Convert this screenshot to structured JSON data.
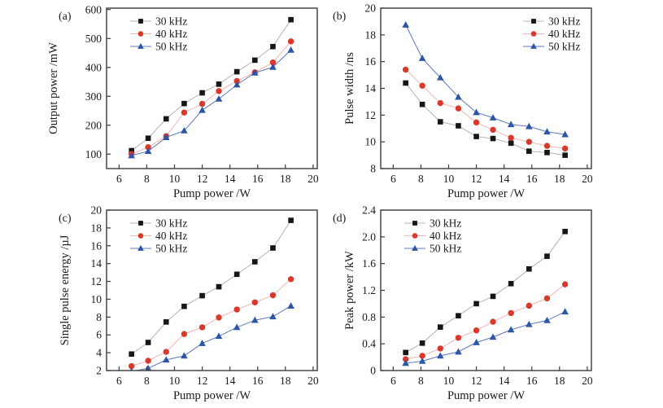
{
  "figure": {
    "xlabel": "Pump power /W",
    "series_labels": [
      "30 kHz",
      "40 kHz",
      "50 kHz"
    ],
    "colors": {
      "series_30kHz_marker": "#161616",
      "series_30kHz_line": "#b3b3b3",
      "series_40kHz_marker": "#d9382c",
      "series_40kHz_line": "#f4b6b0",
      "series_50kHz_marker": "#2d55a5",
      "series_50kHz_line": "#5c79bd",
      "frame": "#3a3a3a",
      "text": "#1a1a1a",
      "background": "#ffffff"
    }
  },
  "chart_data": [
    {
      "id": "a",
      "type": "line",
      "panel_label": "(a)",
      "xlabel": "Pump power /W",
      "ylabel": "Output power /mW",
      "xlim": [
        5.1,
        20.3
      ],
      "ylim": [
        50,
        605
      ],
      "xticks": [
        6,
        8,
        10,
        12,
        14,
        16,
        18,
        20
      ],
      "xtick_labels": [
        "6",
        "8",
        "10",
        "12",
        "14",
        "16",
        "18",
        "20"
      ],
      "yticks": [
        100,
        200,
        300,
        400,
        500,
        600
      ],
      "ytick_labels": [
        "100",
        "200",
        "300",
        "400",
        "500",
        "600"
      ],
      "grid": false,
      "legend_pos": "top-left",
      "x": [
        6.9,
        8.1,
        9.4,
        10.7,
        12.0,
        13.2,
        14.5,
        15.8,
        17.1,
        18.4
      ],
      "series": [
        {
          "name": "30 kHz",
          "marker": "square",
          "color": "#161616",
          "line_color": "#b3b3b3",
          "values": [
            112,
            155,
            222,
            275,
            312,
            342,
            385,
            425,
            472,
            565
          ]
        },
        {
          "name": "40 kHz",
          "marker": "circle",
          "color": "#d9382c",
          "line_color": "#f4b6b0",
          "values": [
            100,
            124,
            162,
            244,
            274,
            318,
            353,
            383,
            417,
            490
          ]
        },
        {
          "name": "50 kHz",
          "marker": "triangle",
          "color": "#2d55a5",
          "line_color": "#5c79bd",
          "values": [
            95,
            110,
            158,
            181,
            252,
            291,
            340,
            381,
            401,
            460
          ]
        }
      ]
    },
    {
      "id": "b",
      "type": "line",
      "panel_label": "(b)",
      "xlabel": "Pump power /W",
      "ylabel": "Pulse width /ns",
      "xlim": [
        5.1,
        20.3
      ],
      "ylim": [
        8,
        20
      ],
      "xticks": [
        6,
        8,
        10,
        12,
        14,
        16,
        18,
        20
      ],
      "xtick_labels": [
        "6",
        "8",
        "10",
        "12",
        "14",
        "16",
        "18",
        "20"
      ],
      "yticks": [
        8,
        10,
        12,
        14,
        16,
        18,
        20
      ],
      "ytick_labels": [
        "8",
        "10",
        "12",
        "14",
        "16",
        "18",
        "20"
      ],
      "grid": false,
      "legend_pos": "top-right",
      "x": [
        6.9,
        8.1,
        9.4,
        10.7,
        12.0,
        13.2,
        14.5,
        15.8,
        17.1,
        18.4
      ],
      "series": [
        {
          "name": "30 kHz",
          "marker": "square",
          "color": "#161616",
          "line_color": "#b3b3b3",
          "values": [
            14.4,
            12.8,
            11.5,
            11.2,
            10.4,
            10.25,
            9.9,
            9.3,
            9.2,
            9.0
          ]
        },
        {
          "name": "40 kHz",
          "marker": "circle",
          "color": "#d9382c",
          "line_color": "#f4b6b0",
          "values": [
            15.4,
            14.2,
            12.9,
            12.5,
            11.45,
            10.9,
            10.3,
            10.0,
            9.7,
            9.5
          ]
        },
        {
          "name": "50 kHz",
          "marker": "triangle",
          "color": "#2d55a5",
          "line_color": "#5c79bd",
          "values": [
            18.75,
            16.25,
            14.8,
            13.35,
            12.2,
            11.8,
            11.3,
            11.15,
            10.75,
            10.55
          ]
        }
      ]
    },
    {
      "id": "c",
      "type": "line",
      "panel_label": "(c)",
      "xlabel": "Pump power /W",
      "ylabel": "Single pulse energy /µJ",
      "xlim": [
        5.1,
        20.3
      ],
      "ylim": [
        2,
        20
      ],
      "xticks": [
        6,
        8,
        10,
        12,
        14,
        16,
        18,
        20
      ],
      "xtick_labels": [
        "6",
        "8",
        "10",
        "12",
        "14",
        "16",
        "18",
        "20"
      ],
      "yticks": [
        2,
        4,
        6,
        8,
        10,
        12,
        14,
        16,
        18,
        20
      ],
      "ytick_labels": [
        "2",
        "4",
        "6",
        "8",
        "10",
        "12",
        "14",
        "16",
        "18",
        "20"
      ],
      "grid": false,
      "legend_pos": "top-left",
      "x": [
        6.9,
        8.1,
        9.4,
        10.7,
        12.0,
        13.2,
        14.5,
        15.8,
        17.1,
        18.4
      ],
      "series": [
        {
          "name": "30 kHz",
          "marker": "square",
          "color": "#161616",
          "line_color": "#b3b3b3",
          "values": [
            3.85,
            5.15,
            7.45,
            9.2,
            10.4,
            11.4,
            12.8,
            14.2,
            15.75,
            18.85
          ]
        },
        {
          "name": "40 kHz",
          "marker": "circle",
          "color": "#d9382c",
          "line_color": "#f4b6b0",
          "values": [
            2.5,
            3.1,
            4.1,
            6.1,
            6.85,
            7.95,
            8.85,
            9.65,
            10.45,
            12.25
          ]
        },
        {
          "name": "50 kHz",
          "marker": "triangle",
          "color": "#2d55a5",
          "line_color": "#5c79bd",
          "values": [
            1.9,
            2.25,
            3.2,
            3.65,
            5.05,
            5.85,
            6.85,
            7.65,
            8.05,
            9.25
          ]
        }
      ]
    },
    {
      "id": "d",
      "type": "line",
      "panel_label": "(d)",
      "xlabel": "Pump power /W",
      "ylabel": "Peak power /kW",
      "xlim": [
        5.1,
        20.3
      ],
      "ylim": [
        0,
        2.4
      ],
      "xticks": [
        6,
        8,
        10,
        12,
        14,
        16,
        18,
        20
      ],
      "xtick_labels": [
        "6",
        "8",
        "10",
        "12",
        "14",
        "16",
        "18",
        "20"
      ],
      "yticks": [
        0,
        0.4,
        0.8,
        1.2,
        1.6,
        2.0,
        2.4
      ],
      "ytick_labels": [
        "0",
        "0.4",
        "0.8",
        "1.2",
        "1.6",
        "2.0",
        "2.4"
      ],
      "grid": false,
      "legend_pos": "top-left",
      "x": [
        6.9,
        8.1,
        9.4,
        10.7,
        12.0,
        13.2,
        14.5,
        15.8,
        17.1,
        18.4
      ],
      "series": [
        {
          "name": "30 kHz",
          "marker": "square",
          "color": "#161616",
          "line_color": "#b3b3b3",
          "values": [
            0.27,
            0.41,
            0.65,
            0.82,
            1.0,
            1.11,
            1.3,
            1.52,
            1.71,
            2.08
          ]
        },
        {
          "name": "40 kHz",
          "marker": "circle",
          "color": "#d9382c",
          "line_color": "#f4b6b0",
          "values": [
            0.17,
            0.22,
            0.33,
            0.49,
            0.6,
            0.73,
            0.86,
            0.97,
            1.08,
            1.29
          ]
        },
        {
          "name": "50 kHz",
          "marker": "triangle",
          "color": "#2d55a5",
          "line_color": "#5c79bd",
          "values": [
            0.11,
            0.14,
            0.22,
            0.28,
            0.42,
            0.5,
            0.61,
            0.69,
            0.75,
            0.88
          ]
        }
      ]
    }
  ]
}
